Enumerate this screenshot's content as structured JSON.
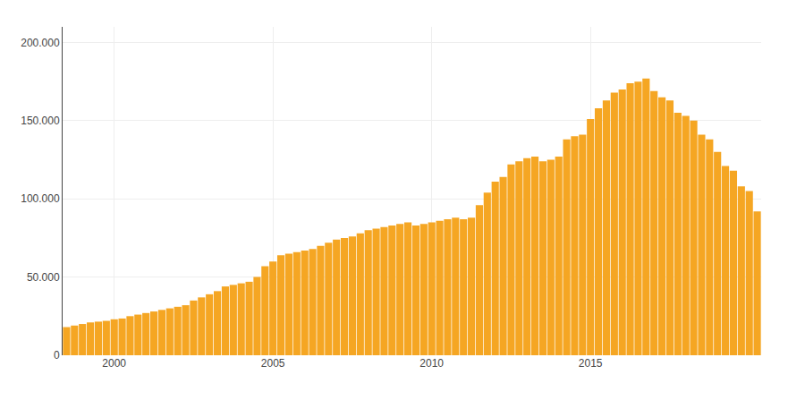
{
  "chart_data": {
    "type": "bar",
    "categories": [
      null,
      null,
      null,
      null,
      null,
      null,
      "2000",
      null,
      null,
      null,
      null,
      null,
      null,
      null,
      null,
      null,
      null,
      null,
      null,
      null,
      null,
      null,
      null,
      null,
      null,
      null,
      "2005",
      null,
      null,
      null,
      null,
      null,
      null,
      null,
      null,
      null,
      null,
      null,
      null,
      null,
      null,
      null,
      null,
      null,
      null,
      null,
      "2010",
      null,
      null,
      null,
      null,
      null,
      null,
      null,
      null,
      null,
      null,
      null,
      null,
      null,
      null,
      null,
      null,
      null,
      null,
      null,
      "2015",
      null,
      null,
      null,
      null,
      null,
      null,
      null,
      null,
      null,
      null,
      null,
      null,
      null,
      null,
      null,
      null,
      null,
      null,
      null,
      null,
      null
    ],
    "values": [
      18000,
      19000,
      20000,
      21000,
      21500,
      22000,
      23000,
      23500,
      25000,
      26000,
      27000,
      28000,
      29000,
      30000,
      31000,
      32000,
      35000,
      37000,
      39000,
      41000,
      44000,
      45000,
      46000,
      47000,
      50000,
      57000,
      60000,
      64000,
      65000,
      66000,
      67000,
      68000,
      70000,
      72000,
      74000,
      75000,
      76000,
      78000,
      80000,
      81000,
      82000,
      83000,
      84000,
      85000,
      83000,
      84000,
      85000,
      86000,
      87000,
      88000,
      87000,
      88000,
      96000,
      104000,
      111000,
      114000,
      122000,
      124000,
      126000,
      127000,
      124000,
      125000,
      127000,
      138000,
      140000,
      141000,
      151000,
      158000,
      163000,
      168000,
      170000,
      174000,
      175000,
      177000,
      169000,
      165000,
      163000,
      155000,
      153000,
      150000,
      141000,
      138000,
      130000,
      121000,
      118000,
      108000,
      105000,
      92000
    ],
    "color": "#F5A623",
    "ylim": [
      0,
      210000
    ],
    "yticks": [
      0,
      {
        "value": 50000,
        "label": "50.000"
      },
      {
        "value": 100000,
        "label": "100.000"
      },
      {
        "value": 150000,
        "label": "150.000"
      },
      {
        "value": 200000,
        "label": "200.000"
      }
    ],
    "grid": true
  }
}
